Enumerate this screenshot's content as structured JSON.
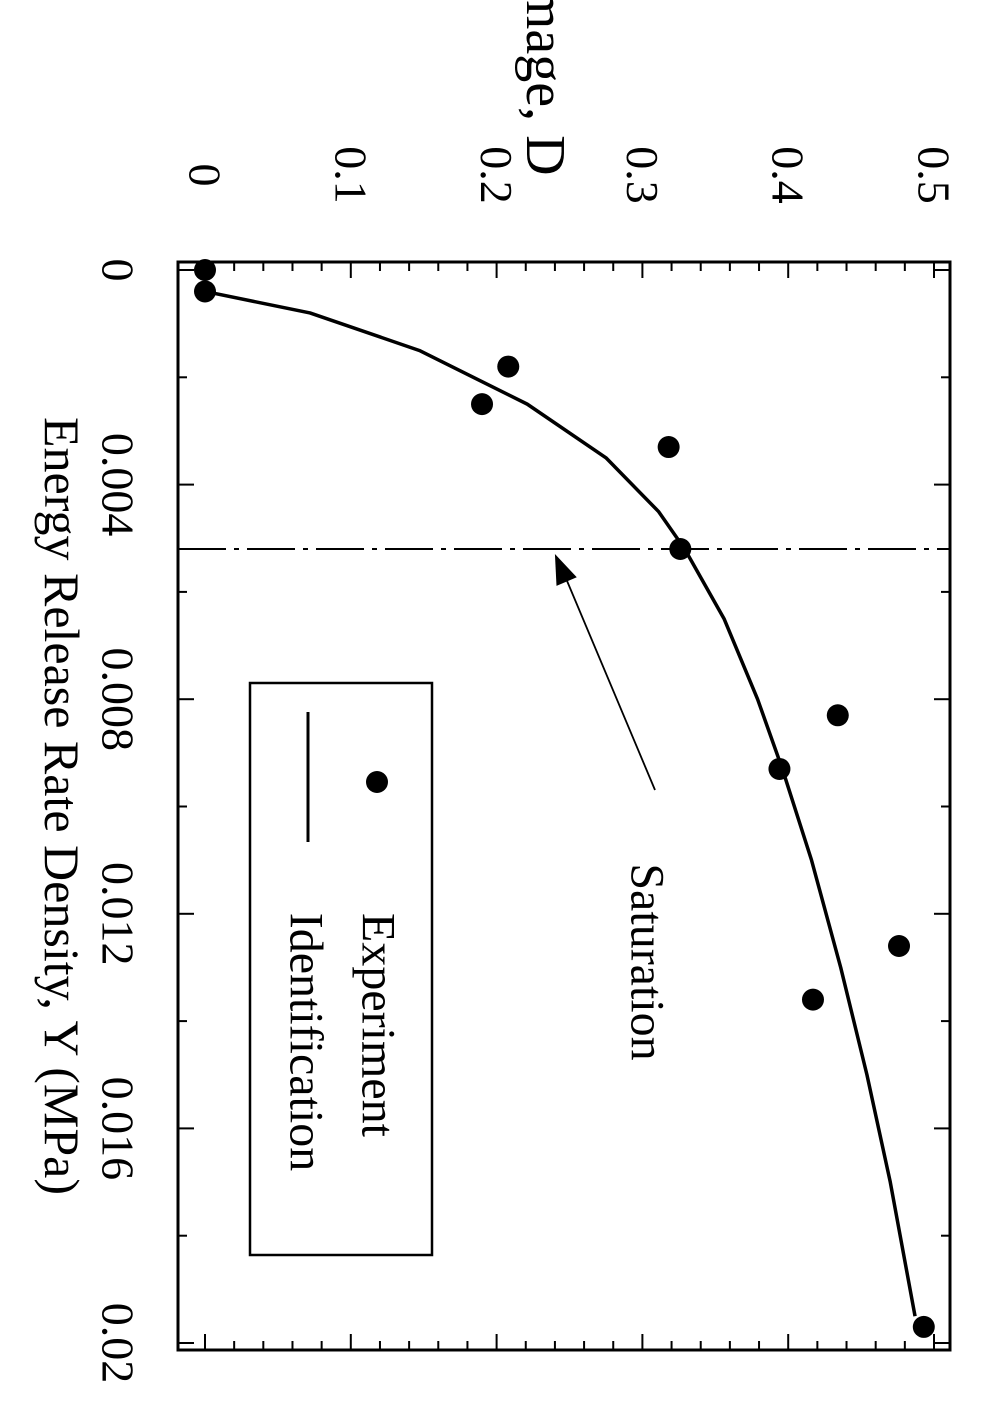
{
  "chart_data": {
    "type": "scatter",
    "orientation": "rotated-90-clockwise",
    "xlabel": "Energy Release Rate Density, Y (MPa)",
    "ylabel": "Damage, D",
    "xlim": [
      0,
      0.02
    ],
    "ylim": [
      0,
      0.5
    ],
    "xticks": [
      "0",
      "0.004",
      "0.008",
      "0.012",
      "0.016",
      "0.02"
    ],
    "yticks": [
      "0",
      "0.1",
      "0.2",
      "0.3",
      "0.4",
      "0.5"
    ],
    "x_minor_step": 0.002,
    "y_minor_step": 0.02,
    "grid": false,
    "legend_position": "bottom-right",
    "series": [
      {
        "name": "Experiment",
        "kind": "markers",
        "x": [
          0.0,
          0.0004,
          0.0018,
          0.0025,
          0.0033,
          0.0052,
          0.0083,
          0.0093,
          0.0126,
          0.0136,
          0.0197
        ],
        "y": [
          0.0,
          0.0,
          0.208,
          0.19,
          0.318,
          0.326,
          0.434,
          0.394,
          0.476,
          0.417,
          0.493
        ]
      },
      {
        "name": "Identification",
        "kind": "line",
        "x": [
          0.0004,
          0.0008,
          0.0015,
          0.0025,
          0.0035,
          0.0045,
          0.0052,
          0.0065,
          0.008,
          0.0093,
          0.011,
          0.013,
          0.015,
          0.017,
          0.0195
        ],
        "y": [
          0.0,
          0.072,
          0.147,
          0.221,
          0.275,
          0.311,
          0.329,
          0.356,
          0.379,
          0.396,
          0.416,
          0.436,
          0.454,
          0.47,
          0.487
        ]
      }
    ],
    "saturation_line_x": 0.0052,
    "annotation": {
      "text": "Saturation",
      "arrow_to": [
        0.0052,
        0.24
      ]
    }
  }
}
